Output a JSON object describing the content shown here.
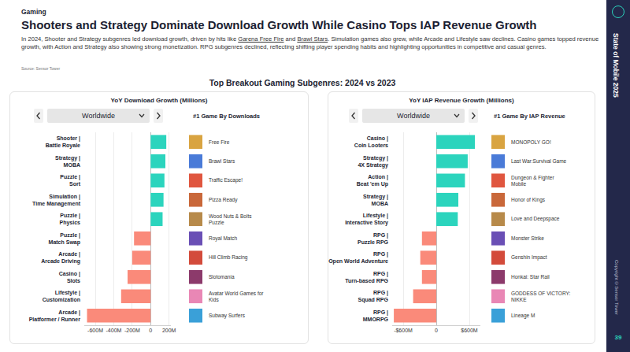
{
  "header": {
    "section": "Gaming",
    "title": "Shooters and Strategy Dominate Download Growth While Casino Tops IAP Revenue Growth",
    "paragraph": "In 2024, Shooter and Strategy subgenres led download growth, driven by hits like Garena Free Fire and Brawl Stars. Simulation games also grew, while Arcade and Lifestyle saw declines. Casino games topped revenue growth, with Action and Strategy also showing strong monetization. RPG subgenres declined, reflecting shifting player spending habits and highlighting opportunities in competitive and casual genres.",
    "underlined": [
      "Garena Free Fire",
      "Brawl Stars"
    ],
    "source": "Source: Sensor Tower",
    "chart_heading": "Top Breakout Gaming Subgenres: 2024 vs 2023",
    "sidebar": {
      "report": "State of Mobile 2025",
      "copyright": "Copyright ©Sensor Tower",
      "page": "39"
    }
  },
  "chart_data": [
    {
      "type": "bar",
      "orientation": "horizontal",
      "title": "YoY Download Growth (Millions)",
      "region": "Worldwide",
      "top_game_heading": "#1 Game By Downloads",
      "categories": [
        "Shooter | Battle Royale",
        "Strategy | MOBA",
        "Puzzle | Sort",
        "Simulation | Time Management",
        "Puzzle | Physics",
        "Puzzle | Match Swap",
        "Arcade | Arcade Driving",
        "Casino | Slots",
        "Lifestyle | Customization",
        "Arcade | Platformer / Runner"
      ],
      "values": [
        170,
        160,
        150,
        140,
        130,
        -180,
        -200,
        -250,
        -320,
        -690
      ],
      "colors": [
        "#2bd4bd",
        "#2bd4bd",
        "#2bd4bd",
        "#2bd4bd",
        "#2bd4bd",
        "#fa8a7a",
        "#fa8a7a",
        "#fa8a7a",
        "#fa8a7a",
        "#fa8a7a"
      ],
      "top_games": [
        "Free Fire",
        "Brawl Stars",
        "Traffic Escape!",
        "Pizza Ready",
        "Wood Nuts & Bolts Puzzle",
        "Royal Match",
        "Hill Climb Racing",
        "Slotomania",
        "Avatar World Games for Kids",
        "Subway Surfers"
      ],
      "xlim": [
        -720,
        220
      ],
      "xticks": [
        {
          "value": -600,
          "label": "-600M"
        },
        {
          "value": -400,
          "label": "-400M"
        },
        {
          "value": -200,
          "label": "-200M"
        },
        0,
        {
          "value": 200,
          "label": "200M"
        }
      ],
      "grid": true
    },
    {
      "type": "bar",
      "orientation": "horizontal",
      "title": "YoY IAP Revenue Growth (Millions)",
      "region": "Worldwide",
      "top_game_heading": "#1 Game By IAP Revenue",
      "categories": [
        "Casino | Coin Looters",
        "Strategy | 4X Strategy",
        "Action | Beat 'em Up",
        "Strategy | MOBA",
        "Lifestyle | Interactive Story",
        "RPG | Puzzle RPG",
        "RPG | Open World Adventure",
        "RPG | Turn-based RPG",
        "RPG | Squad RPG",
        "RPG | MMORPG"
      ],
      "values": [
        700,
        570,
        520,
        400,
        390,
        -260,
        -290,
        -260,
        -420,
        -770
      ],
      "colors": [
        "#2bd4bd",
        "#2bd4bd",
        "#2bd4bd",
        "#2bd4bd",
        "#2bd4bd",
        "#fa8a7a",
        "#fa8a7a",
        "#fa8a7a",
        "#fa8a7a",
        "#fa8a7a"
      ],
      "top_games": [
        "MONOPOLY GO!",
        "Last War:Survival Game",
        "Dungeon & Fighter Mobile",
        "Honor of Kings",
        "Love and Deepspace",
        "Monster Strike",
        "Genshin Impact",
        "Honkai: Star Rail",
        "GODDESS OF VICTORY: NIKKE",
        "Lineage M"
      ],
      "xlim": [
        -800,
        800
      ],
      "xticks": [
        {
          "value": -600,
          "label": "-$600M"
        },
        0,
        {
          "value": 600,
          "label": "$600M"
        }
      ],
      "grid": true
    }
  ]
}
